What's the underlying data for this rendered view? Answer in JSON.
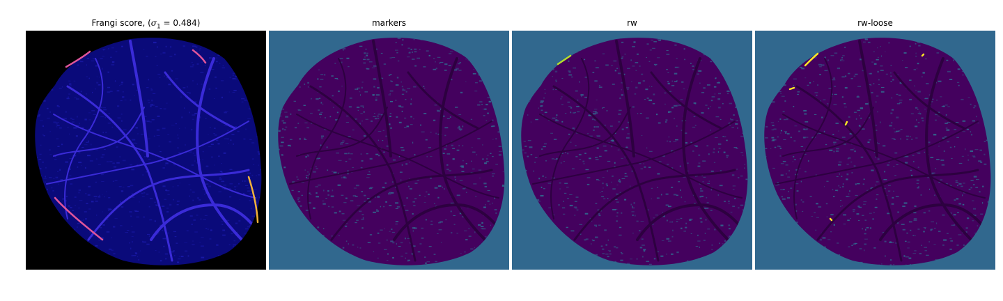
{
  "figure": {
    "panels": [
      {
        "id": "frangi",
        "title_prefix": "Frangi score, (",
        "sigma_symbol": "σ",
        "sigma_sub": "1",
        "title_suffix": " = 0.484)",
        "background": "#000000",
        "fill_color": "#0a0a7a",
        "vessel_color": "#3a2bd8",
        "highlight_color": "#e0559a",
        "highlight_color_2": "#f3b23a"
      },
      {
        "id": "markers",
        "title": "markers",
        "background": "#31688e",
        "fill_color": "#44015e",
        "vessel_color": "#2d0140"
      },
      {
        "id": "rw",
        "title": "rw",
        "background": "#31688e",
        "fill_color": "#44015e",
        "vessel_color": "#2d0140",
        "highlight_color": "#b5de2b"
      },
      {
        "id": "rw-loose",
        "title": "rw-loose",
        "background": "#31688e",
        "fill_color": "#44015e",
        "vessel_color": "#2d0140",
        "highlight_color": "#fde725"
      }
    ]
  }
}
